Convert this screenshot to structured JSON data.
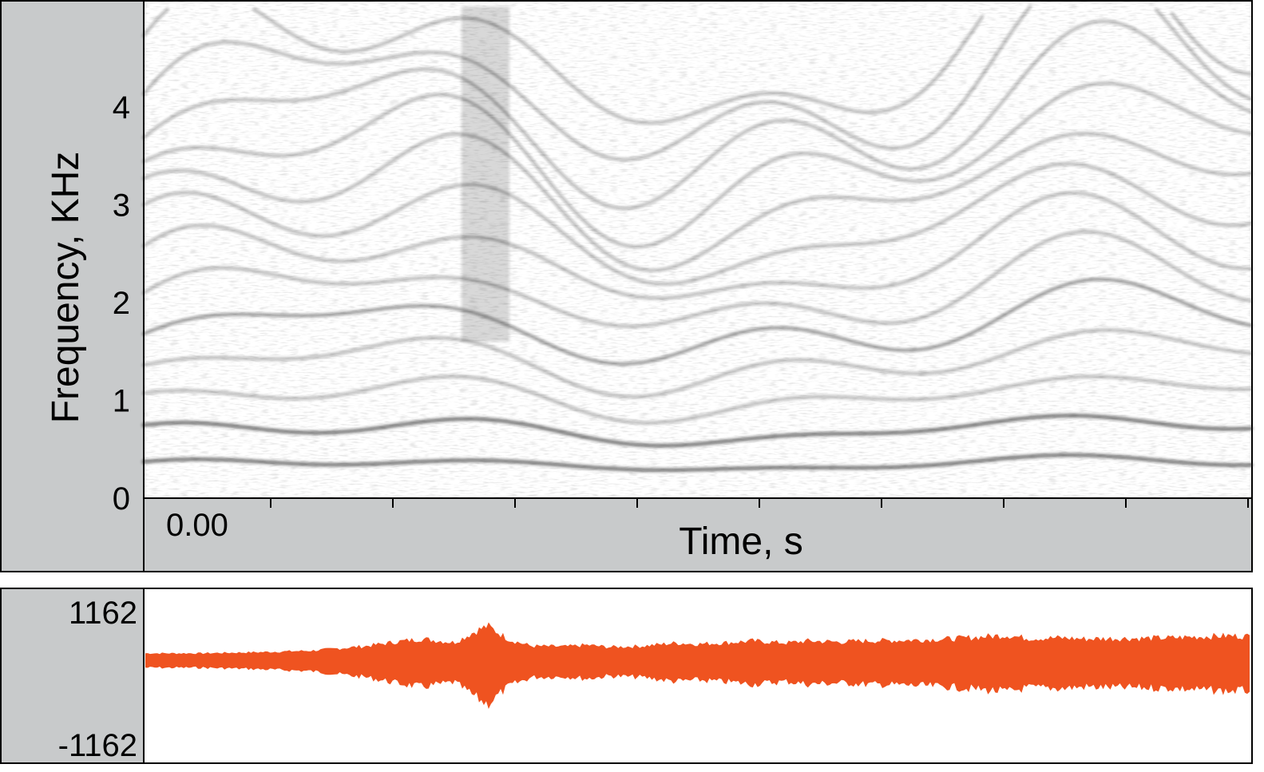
{
  "chart_data": [
    {
      "type": "heatmap",
      "title": "",
      "xlabel": "Time, s",
      "ylabel": "Frequency, KHz",
      "x_tick_labels": [
        "0.00"
      ],
      "y_ticks": [
        0,
        1,
        2,
        3,
        4
      ],
      "ylim": [
        0,
        5
      ],
      "colormap": "grayscale (darker = higher energy)",
      "grid": false
    },
    {
      "type": "area",
      "title": "",
      "xlabel": "",
      "ylabel": "",
      "y_tick_labels": [
        "1162",
        "-1162"
      ],
      "ylim": [
        -1162,
        1162
      ],
      "x": [
        0,
        0.05,
        0.1,
        0.15,
        0.2,
        0.23,
        0.25,
        0.28,
        0.3,
        0.31,
        0.33,
        0.35,
        0.38,
        0.4,
        0.42,
        0.45,
        0.48,
        0.5,
        0.53,
        0.55,
        0.58,
        0.6,
        0.63,
        0.65,
        0.68,
        0.7,
        0.73,
        0.75,
        0.78,
        0.8,
        0.83,
        0.85,
        0.88,
        0.9,
        0.93,
        0.95,
        0.98,
        1.0
      ],
      "values": [
        120,
        120,
        140,
        170,
        260,
        350,
        400,
        330,
        560,
        650,
        380,
        260,
        250,
        280,
        240,
        260,
        320,
        300,
        330,
        360,
        320,
        360,
        340,
        360,
        370,
        380,
        400,
        430,
        470,
        410,
        420,
        400,
        410,
        410,
        420,
        440,
        460,
        450
      ],
      "color": "#ef5320"
    }
  ]
}
